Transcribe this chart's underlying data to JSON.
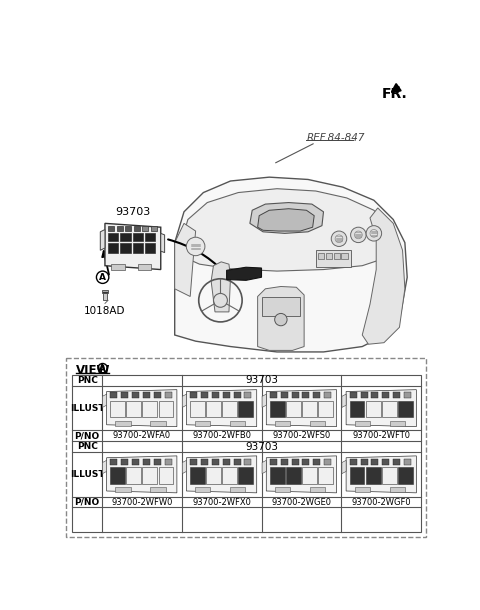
{
  "fr_label": "FR.",
  "ref_label": "REF.84-847",
  "part_93703_label": "93703",
  "part_1018AD_label": "1018AD",
  "row1_pnos": [
    "93700-2WFA0",
    "93700-2WFB0",
    "93700-2WFS0",
    "93700-2WFT0"
  ],
  "row2_pnos": [
    "93700-2WFW0",
    "93700-2WFX0",
    "93700-2WGE0",
    "93700-2WGF0"
  ],
  "bg_color": "#ffffff"
}
